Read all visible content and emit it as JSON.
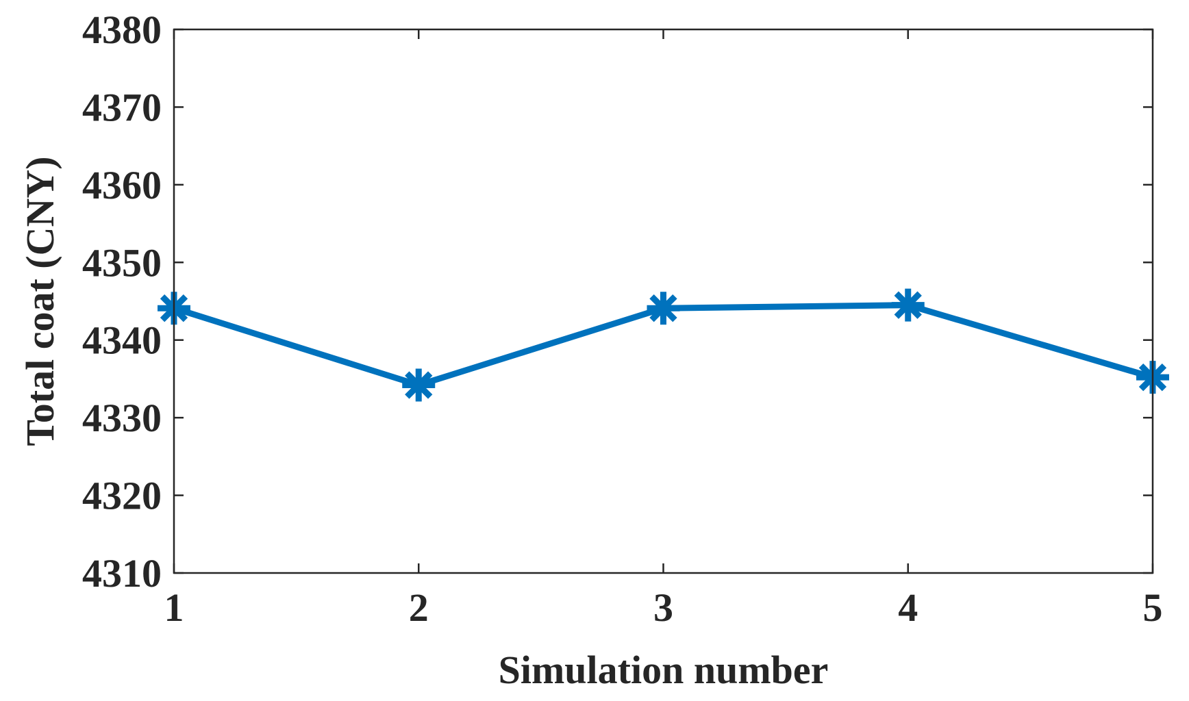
{
  "chart_data": {
    "type": "line",
    "title": "",
    "xlabel": "Simulation number",
    "ylabel": "Total coat (CNY)",
    "x": [
      1,
      2,
      3,
      4,
      5
    ],
    "xlim": [
      1,
      5
    ],
    "ylim": [
      4310,
      4380
    ],
    "xticks": [
      "1",
      "2",
      "3",
      "4",
      "5"
    ],
    "yticks": [
      "4310",
      "4320",
      "4330",
      "4340",
      "4350",
      "4360",
      "4370",
      "4380"
    ],
    "grid": false,
    "legend": "none",
    "series": [
      {
        "values": [
          4344.1,
          4334.2,
          4344.1,
          4344.5,
          4335.2
        ],
        "color": "#0072BD",
        "marker": "asterisk"
      }
    ],
    "axis_color": "#262626"
  }
}
